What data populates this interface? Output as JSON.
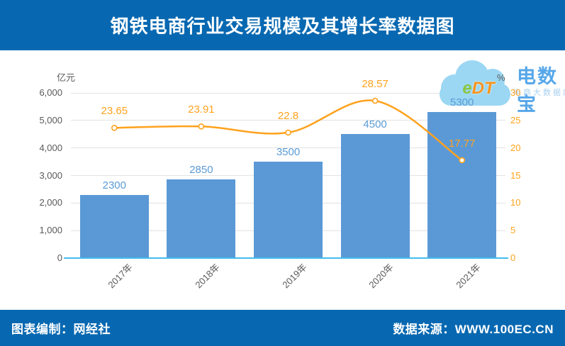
{
  "header": {
    "title": "钢铁电商行业交易规模及其增长率数据图"
  },
  "footer": {
    "left": "图表编制：网经社",
    "right": "数据来源：WWW.100EC.CN"
  },
  "watermark": {
    "logo_e": "e",
    "logo_dt": "DT",
    "name": "电数宝",
    "subtitle": "电商大数据库"
  },
  "chart_data": {
    "type": "combo-bar-line",
    "title": "钢铁电商行业交易规模及其增长率数据图",
    "categories": [
      "2017年",
      "2018年",
      "2019年",
      "2020年",
      "2021年"
    ],
    "series": [
      {
        "name": "交易规模",
        "type": "bar",
        "axis": "left",
        "values": [
          2300,
          2850,
          3500,
          4500,
          5300
        ]
      },
      {
        "name": "增长率",
        "type": "line",
        "axis": "right",
        "values": [
          23.65,
          23.91,
          22.8,
          28.57,
          17.77
        ]
      }
    ],
    "left_axis": {
      "label": "亿元",
      "min": 0,
      "max": 6000,
      "step": 1000,
      "ticks": [
        "6,000",
        "5,000",
        "4,000",
        "3,000",
        "2,000",
        "1,000",
        "0"
      ]
    },
    "right_axis": {
      "label": "%",
      "min": 0,
      "max": 30,
      "step": 5,
      "ticks": [
        "30",
        "25",
        "20",
        "15",
        "10",
        "5",
        "0"
      ]
    },
    "grid": true,
    "legend": "none"
  },
  "colors": {
    "header_bg": "#0768B1",
    "bar": "#5B99D6",
    "bar_label": "#5B9BD5",
    "line": "#FFA21D",
    "axis_text": "#595959",
    "grid": "#E2E2E2",
    "axis_line": "#45BCEC",
    "watermark_cloud": "#9BD7F3",
    "logo_e": "#8CC63F",
    "logo_dt": "#F7941D",
    "logo_name": "#56A7E9",
    "logo_sub": "#A6D0F0"
  }
}
